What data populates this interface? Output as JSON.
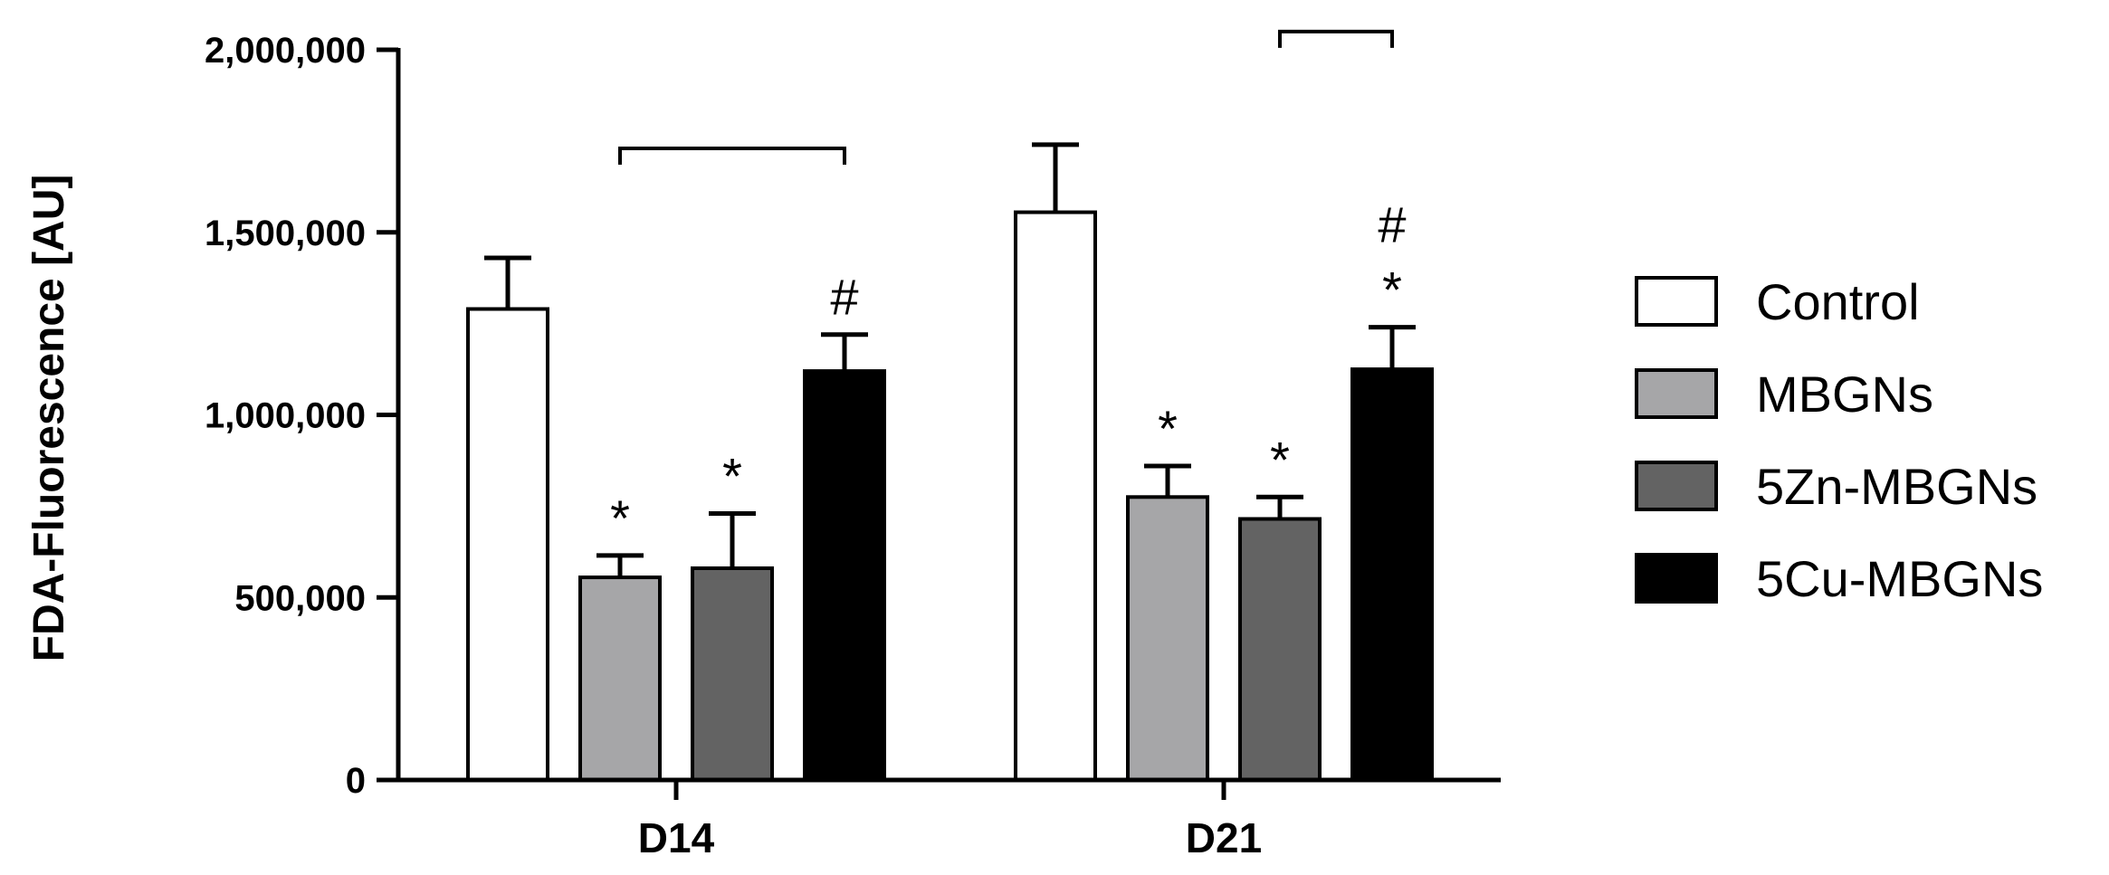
{
  "chart_data": {
    "type": "bar",
    "title": "",
    "xlabel": "",
    "ylabel": "FDA-Fluorescence [AU]",
    "ylim": [
      0,
      2000000
    ],
    "yticks": [
      0,
      500000,
      1000000,
      1500000,
      2000000
    ],
    "ytick_labels": [
      "0",
      "500,000",
      "1,000,000",
      "1,500,000",
      "2,000,000"
    ],
    "categories": [
      "D14",
      "D21"
    ],
    "legend_position": "right",
    "grid": false,
    "error_bars": "upper",
    "series": [
      {
        "name": "Control",
        "color": "#ffffff",
        "values": [
          1290000,
          1555000
        ],
        "errors": [
          140000,
          185000
        ],
        "marks": [
          "",
          ""
        ]
      },
      {
        "name": "MBGNs",
        "color": "#a6a6a8",
        "values": [
          555000,
          775000
        ],
        "errors": [
          60000,
          85000
        ],
        "marks": [
          "*",
          "*"
        ]
      },
      {
        "name": "5Zn-MBGNs",
        "color": "#636363",
        "values": [
          580000,
          715000
        ],
        "errors": [
          150000,
          60000
        ],
        "marks": [
          "*",
          "*"
        ]
      },
      {
        "name": "5Cu-MBGNs",
        "color": "#000000",
        "values": [
          1120000,
          1125000
        ],
        "errors": [
          100000,
          115000
        ],
        "marks": [
          "#",
          "#\n*"
        ]
      }
    ],
    "brackets": [
      {
        "category": "D14",
        "from_series": "MBGNs",
        "to_series": "5Cu-MBGNs",
        "level": 1730000
      },
      {
        "category": "D21",
        "from_series": "5Zn-MBGNs",
        "to_series": "5Cu-MBGNs",
        "level": 2050000
      }
    ]
  }
}
